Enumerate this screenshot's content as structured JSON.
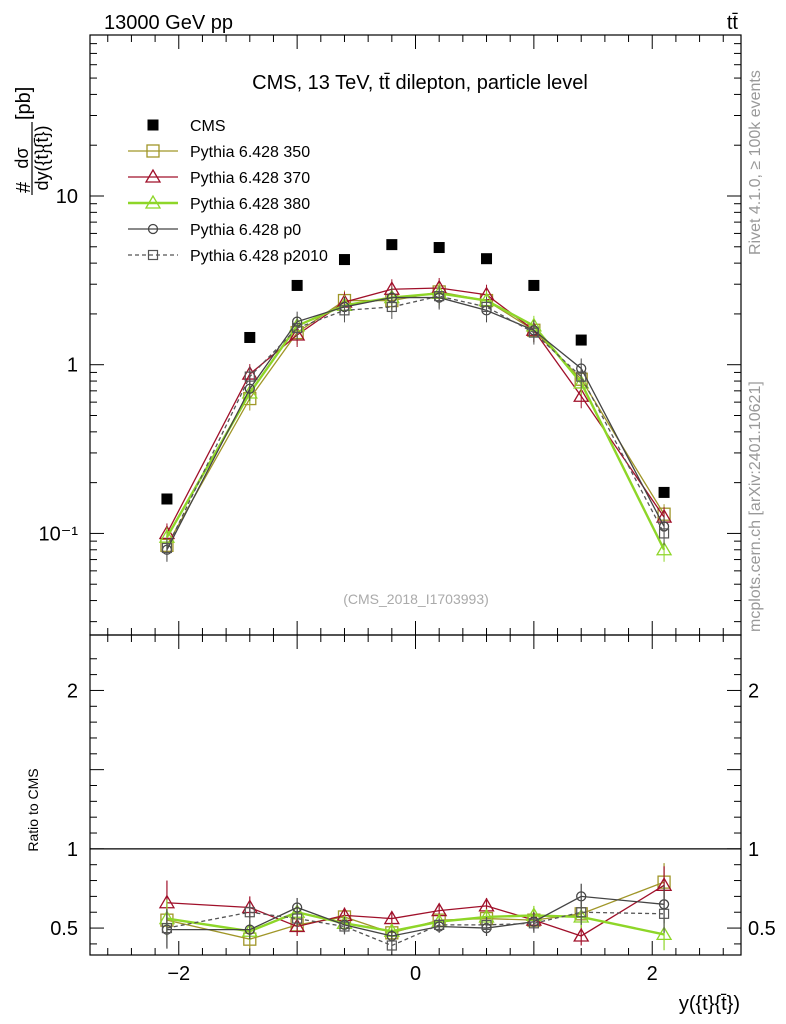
{
  "header": {
    "left": "13000 GeV pp",
    "right": "tt̄"
  },
  "side_labels": {
    "rivet": "Rivet 4.1.0, ≥ 100k events",
    "mcplots": "mcplots.cern.ch [arXiv:2401.10621]"
  },
  "chart_data": {
    "type": "scatter",
    "title": "CMS, 13 TeV, tt̄ dilepton, particle level",
    "watermark": "(CMS_2018_I1703993)",
    "ylabel": "#dσ/dy({t}{t̄})[pb]",
    "ylabel_num": "dσ",
    "ylabel_den": "dy({t}{t̄})",
    "ylabel_prefix": "#",
    "ylabel_suffix": "[pb]",
    "xlabel": "y({t}{t̄})",
    "ratio_ylabel": "Ratio to CMS",
    "yscale": "log",
    "xlim": [
      -2.75,
      2.75
    ],
    "ylim": [
      0.025,
      90
    ],
    "ratio_ylim": [
      0.33,
      2.35
    ],
    "xticks": [
      -2,
      0,
      2
    ],
    "xtick_labels": [
      "−2",
      "0",
      "2"
    ],
    "yticks_main": [
      0.1,
      1,
      10
    ],
    "ytick_labels_main": [
      "10⁻¹",
      "1",
      "10"
    ],
    "yticks_ratio": [
      0.5,
      1,
      2
    ],
    "ytick_labels_ratio": [
      "0.5",
      "1",
      "2"
    ],
    "x": [
      -2.1,
      -1.4,
      -1.0,
      -0.6,
      -0.2,
      0.2,
      0.6,
      1.0,
      1.4,
      2.1
    ],
    "series": [
      {
        "name": "CMS",
        "color": "#000000",
        "marker": "filled-square",
        "line": "none",
        "values": [
          0.16,
          1.45,
          2.95,
          4.2,
          5.15,
          4.95,
          4.25,
          2.95,
          1.4,
          0.175
        ]
      },
      {
        "name": "Pythia 6.428 350",
        "color": "#a09628",
        "marker": "open-square",
        "line": "solid",
        "values": [
          0.085,
          0.63,
          1.55,
          2.4,
          2.4,
          2.7,
          2.4,
          1.6,
          0.82,
          0.13
        ],
        "ratio": [
          0.55,
          0.43,
          0.52,
          0.57,
          0.47,
          0.55,
          0.56,
          0.55,
          0.59,
          0.79
        ],
        "ratio_err": [
          0.1,
          0.06,
          0.06,
          0.05,
          0.04,
          0.04,
          0.05,
          0.06,
          0.08,
          0.12
        ]
      },
      {
        "name": "Pythia 6.428 370",
        "color": "#a0102a",
        "marker": "open-triangle",
        "line": "solid",
        "values": [
          0.1,
          0.88,
          1.5,
          2.35,
          2.8,
          2.85,
          2.6,
          1.6,
          0.65,
          0.125
        ],
        "ratio": [
          0.66,
          0.63,
          0.51,
          0.58,
          0.56,
          0.61,
          0.64,
          0.55,
          0.45,
          0.77
        ],
        "ratio_err": [
          0.14,
          0.07,
          0.06,
          0.05,
          0.04,
          0.04,
          0.05,
          0.06,
          0.06,
          0.12
        ]
      },
      {
        "name": "Pythia 6.428 380",
        "color": "#8ed628",
        "marker": "open-triangle",
        "line": "solid",
        "values": [
          0.095,
          0.68,
          1.7,
          2.25,
          2.5,
          2.65,
          2.4,
          1.7,
          0.78,
          0.08
        ],
        "ratio": [
          0.56,
          0.48,
          0.6,
          0.53,
          0.48,
          0.54,
          0.57,
          0.58,
          0.57,
          0.46
        ],
        "ratio_err": [
          0.12,
          0.06,
          0.06,
          0.05,
          0.04,
          0.04,
          0.05,
          0.06,
          0.07,
          0.1
        ]
      },
      {
        "name": "Pythia 6.428 p0",
        "color": "#444444",
        "marker": "open-circle",
        "line": "solid",
        "values": [
          0.08,
          0.72,
          1.8,
          2.2,
          2.5,
          2.5,
          2.1,
          1.6,
          0.95,
          0.11
        ],
        "ratio": [
          0.49,
          0.49,
          0.63,
          0.52,
          0.45,
          0.51,
          0.5,
          0.54,
          0.7,
          0.65
        ],
        "ratio_err": [
          0.12,
          0.06,
          0.06,
          0.05,
          0.04,
          0.04,
          0.05,
          0.06,
          0.08,
          0.12
        ]
      },
      {
        "name": "Pythia 6.428 p2010",
        "color": "#555555",
        "marker": "open-square-small",
        "line": "dashed",
        "values": [
          0.082,
          0.85,
          1.65,
          2.1,
          2.2,
          2.55,
          2.2,
          1.55,
          0.85,
          0.1
        ],
        "ratio": [
          0.5,
          0.6,
          0.56,
          0.51,
          0.39,
          0.52,
          0.52,
          0.53,
          0.6,
          0.59
        ],
        "ratio_err": [
          0.12,
          0.06,
          0.06,
          0.05,
          0.04,
          0.04,
          0.05,
          0.06,
          0.08,
          0.12
        ]
      }
    ]
  }
}
